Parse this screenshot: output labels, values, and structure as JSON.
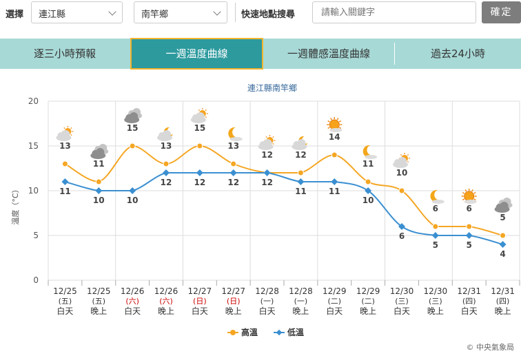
{
  "toolbar": {
    "select_label": "選擇",
    "county": "連江縣",
    "township": "南竿鄉",
    "search_label": "快速地點搜尋",
    "search_placeholder": "請輸入關鍵字",
    "confirm": "確定"
  },
  "tabs": [
    {
      "label": "逐三小時預報",
      "active": false
    },
    {
      "label": "一週溫度曲線",
      "active": true
    },
    {
      "label": "一週體感溫度曲線",
      "active": false
    },
    {
      "label": "過去24小時",
      "active": false
    }
  ],
  "credit": "© 中央氣象局",
  "chart_data": {
    "type": "line",
    "title": "連江縣南竿鄉",
    "ylabel": "溫度（°C）",
    "ylim": [
      0,
      20
    ],
    "yticks": [
      "0",
      "5",
      "10",
      "15",
      "20"
    ],
    "grid": true,
    "legend_position": "bottom",
    "categories": [
      {
        "date": "12/25",
        "dow": "(五)",
        "period": "白天",
        "holiday": false
      },
      {
        "date": "12/25",
        "dow": "(五)",
        "period": "晚上",
        "holiday": false
      },
      {
        "date": "12/26",
        "dow": "(六)",
        "period": "白天",
        "holiday": true
      },
      {
        "date": "12/26",
        "dow": "(六)",
        "period": "晚上",
        "holiday": true
      },
      {
        "date": "12/27",
        "dow": "(日)",
        "period": "白天",
        "holiday": true
      },
      {
        "date": "12/27",
        "dow": "(日)",
        "period": "晚上",
        "holiday": true
      },
      {
        "date": "12/28",
        "dow": "(一)",
        "period": "白天",
        "holiday": false
      },
      {
        "date": "12/28",
        "dow": "(一)",
        "period": "晚上",
        "holiday": false
      },
      {
        "date": "12/29",
        "dow": "(二)",
        "period": "白天",
        "holiday": false
      },
      {
        "date": "12/29",
        "dow": "(二)",
        "period": "晚上",
        "holiday": false
      },
      {
        "date": "12/30",
        "dow": "(三)",
        "period": "白天",
        "holiday": false
      },
      {
        "date": "12/30",
        "dow": "(三)",
        "period": "晚上",
        "holiday": false
      },
      {
        "date": "12/31",
        "dow": "(四)",
        "period": "白天",
        "holiday": false
      },
      {
        "date": "12/31",
        "dow": "(四)",
        "period": "晚上",
        "holiday": false
      }
    ],
    "series": [
      {
        "name": "高溫",
        "color": "#f5a623",
        "values": [
          13,
          11,
          15,
          13,
          15,
          13,
          12,
          12,
          14,
          11,
          10,
          6,
          6,
          5
        ]
      },
      {
        "name": "低溫",
        "color": "#3a8fd1",
        "values": [
          11,
          10,
          10,
          12,
          12,
          12,
          12,
          11,
          11,
          10,
          6,
          5,
          5,
          4
        ]
      }
    ],
    "weather_icons": [
      "sun-cloud-icon",
      "cloud-icon",
      "cloud-icon",
      "moon-cloud-icon",
      "sun-cloud-icon",
      "moon-icon",
      "sun-cloud-icon",
      "moon-cloud-icon",
      "sun-icon",
      "moon-icon",
      "sun-cloud-icon",
      "moon-icon",
      "sun-icon",
      "cloud-icon"
    ],
    "colors": {
      "holiday": "#cc0000",
      "grid": "#dddddd"
    }
  }
}
